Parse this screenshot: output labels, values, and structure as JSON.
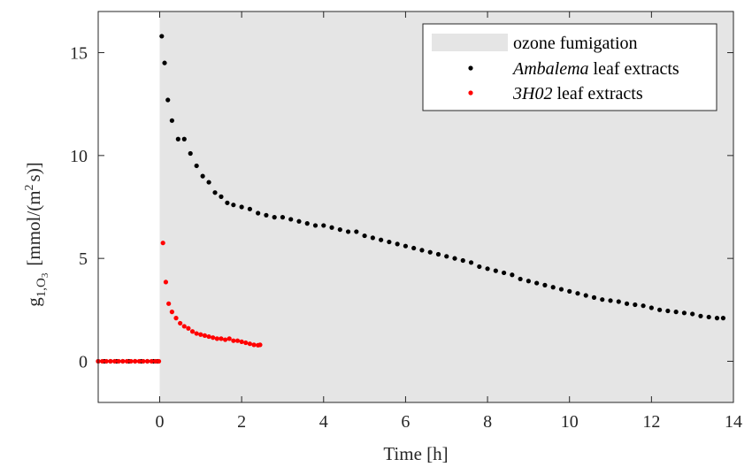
{
  "chart_data": {
    "type": "scatter",
    "xlabel": "Time [h]",
    "ylabel": {
      "main": "g",
      "sub": "1,O",
      "sub2": "3",
      "unit_open": "[mmol/(m",
      "unit_sup": "2",
      "unit_close": "s)]"
    },
    "xlim": [
      -1.5,
      14
    ],
    "ylim": [
      -2,
      17
    ],
    "xticks": [
      0,
      2,
      4,
      6,
      8,
      10,
      12,
      14
    ],
    "yticks": [
      0,
      5,
      10,
      15
    ],
    "shaded_region": {
      "x_start": 0,
      "x_end": 14,
      "color": "#e5e5e5",
      "label": "ozone fumigation"
    },
    "series": [
      {
        "name_italic": "Ambalema",
        "name_rest": "leaf extracts",
        "color": "#000000",
        "x": [
          -1.5,
          -1.35,
          -1.2,
          -1.05,
          -0.9,
          -0.75,
          -0.6,
          -0.45,
          -0.3,
          -0.15,
          -0.05,
          0.05,
          0.12,
          0.2,
          0.3,
          0.45,
          0.6,
          0.75,
          0.9,
          1.05,
          1.2,
          1.35,
          1.5,
          1.65,
          1.8,
          2.0,
          2.2,
          2.4,
          2.6,
          2.8,
          3.0,
          3.2,
          3.4,
          3.6,
          3.8,
          4.0,
          4.2,
          4.4,
          4.6,
          4.8,
          5.0,
          5.2,
          5.4,
          5.6,
          5.8,
          6.0,
          6.2,
          6.4,
          6.6,
          6.8,
          7.0,
          7.2,
          7.4,
          7.6,
          7.8,
          8.0,
          8.2,
          8.4,
          8.6,
          8.8,
          9.0,
          9.2,
          9.4,
          9.6,
          9.8,
          10.0,
          10.2,
          10.4,
          10.6,
          10.8,
          11.0,
          11.2,
          11.4,
          11.6,
          11.8,
          12.0,
          12.2,
          12.4,
          12.6,
          12.8,
          13.0,
          13.2,
          13.4,
          13.6,
          13.75
        ],
        "y": [
          0,
          0,
          0,
          0,
          0,
          0,
          0,
          0,
          0,
          0,
          0,
          15.8,
          14.5,
          12.7,
          11.7,
          10.8,
          10.8,
          10.1,
          9.5,
          9.0,
          8.7,
          8.2,
          8.0,
          7.7,
          7.6,
          7.5,
          7.4,
          7.2,
          7.1,
          7.0,
          7.0,
          6.9,
          6.8,
          6.7,
          6.6,
          6.6,
          6.5,
          6.4,
          6.3,
          6.3,
          6.1,
          6.0,
          5.9,
          5.8,
          5.7,
          5.6,
          5.5,
          5.4,
          5.3,
          5.2,
          5.1,
          5.0,
          4.9,
          4.8,
          4.6,
          4.5,
          4.4,
          4.3,
          4.2,
          4.0,
          3.9,
          3.8,
          3.7,
          3.6,
          3.5,
          3.4,
          3.3,
          3.2,
          3.1,
          3.0,
          2.95,
          2.9,
          2.8,
          2.75,
          2.7,
          2.6,
          2.5,
          2.45,
          2.4,
          2.35,
          2.3,
          2.2,
          2.15,
          2.1,
          2.1
        ]
      },
      {
        "name_italic": "3H02",
        "name_rest": "leaf extracts",
        "color": "#ff0000",
        "x": [
          -1.5,
          -1.4,
          -1.3,
          -1.2,
          -1.1,
          -1.0,
          -0.9,
          -0.8,
          -0.7,
          -0.6,
          -0.5,
          -0.4,
          -0.3,
          -0.2,
          -0.1,
          -0.02,
          0.08,
          0.15,
          0.22,
          0.3,
          0.4,
          0.5,
          0.6,
          0.7,
          0.8,
          0.9,
          1.0,
          1.1,
          1.2,
          1.3,
          1.4,
          1.5,
          1.6,
          1.7,
          1.8,
          1.9,
          2.0,
          2.1,
          2.2,
          2.3,
          2.4,
          2.45
        ],
        "y": [
          0,
          0,
          0,
          0,
          0,
          0,
          0,
          0,
          0,
          0,
          0,
          0,
          0,
          0,
          0,
          0,
          5.75,
          3.85,
          2.8,
          2.4,
          2.1,
          1.85,
          1.7,
          1.6,
          1.45,
          1.35,
          1.3,
          1.25,
          1.2,
          1.15,
          1.1,
          1.1,
          1.05,
          1.1,
          1.0,
          1.0,
          0.95,
          0.9,
          0.85,
          0.8,
          0.78,
          0.8
        ]
      }
    ]
  }
}
